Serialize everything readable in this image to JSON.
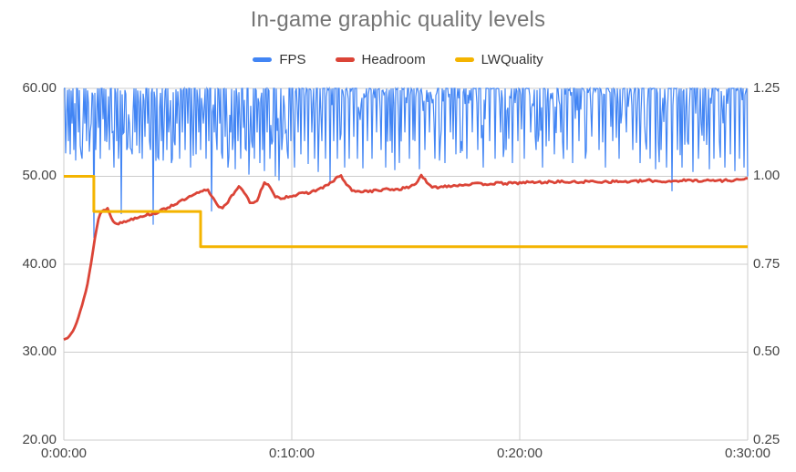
{
  "title": "In-game graphic quality levels",
  "legend": [
    {
      "label": "FPS",
      "color": "#4285F4"
    },
    {
      "label": "Headroom",
      "color": "#DB4437"
    },
    {
      "label": "LWQuality",
      "color": "#F4B400"
    }
  ],
  "colors": {
    "title": "#757575",
    "axis_text": "#444444",
    "gridline": "#cccccc",
    "background": "#ffffff"
  },
  "chart_data": {
    "type": "line",
    "title": "In-game graphic quality levels",
    "legend_position": "top",
    "grid": true,
    "x_axis": {
      "ticks": [
        "0:00:00",
        "0:10:00",
        "0:20:00",
        "0:30:00"
      ],
      "range_seconds": [
        0,
        1800
      ],
      "tick_seconds": [
        0,
        600,
        1200,
        1800
      ]
    },
    "y_axis_left": {
      "ticks": [
        "60.00",
        "50.00",
        "40.00",
        "30.00",
        "20.00"
      ],
      "range": [
        20,
        60
      ]
    },
    "y_axis_right": {
      "ticks": [
        "1.25",
        "1.00",
        "0.75",
        "0.50",
        "0.25"
      ],
      "range": [
        0.25,
        1.25
      ]
    },
    "series": [
      {
        "name": "FPS",
        "axis": "left",
        "color": "#4285F4",
        "line_width": 1.2,
        "baseline": 60,
        "texture": {
          "seed": 7,
          "max_jitter_dip": 8.5,
          "exponent": 6
        },
        "spikes": [
          [
            6,
            57
          ],
          [
            11,
            54
          ],
          [
            16,
            52.5
          ],
          [
            21,
            56
          ],
          [
            27,
            53
          ],
          [
            32,
            51.8
          ],
          [
            38,
            55
          ],
          [
            43,
            53.5
          ],
          [
            49,
            52
          ],
          [
            55,
            56
          ],
          [
            61,
            54
          ],
          [
            66,
            52.8
          ],
          [
            72,
            56
          ],
          [
            79,
            43
          ],
          [
            85,
            53
          ],
          [
            91,
            55.5
          ],
          [
            97,
            52
          ],
          [
            103,
            56.5
          ],
          [
            109,
            54
          ],
          [
            115,
            56
          ],
          [
            121,
            53
          ],
          [
            127,
            55
          ],
          [
            133,
            51
          ],
          [
            139,
            54
          ],
          [
            145,
            52
          ],
          [
            151,
            45.7
          ],
          [
            158,
            55
          ],
          [
            165,
            53
          ],
          [
            172,
            56
          ],
          [
            179,
            52.5
          ],
          [
            186,
            55
          ],
          [
            193,
            53.5
          ],
          [
            200,
            56
          ],
          [
            207,
            52
          ],
          [
            214,
            54.5
          ],
          [
            221,
            56
          ],
          [
            228,
            53
          ],
          [
            235,
            44.5
          ],
          [
            242,
            55
          ],
          [
            249,
            52
          ],
          [
            256,
            54
          ],
          [
            263,
            56
          ],
          [
            270,
            53
          ],
          [
            277,
            55
          ],
          [
            284,
            51.5
          ],
          [
            291,
            54
          ],
          [
            298,
            56
          ],
          [
            305,
            52
          ],
          [
            312,
            55
          ],
          [
            319,
            53
          ],
          [
            326,
            56
          ],
          [
            333,
            51
          ],
          [
            340,
            54
          ],
          [
            347,
            52.5
          ],
          [
            354,
            55
          ],
          [
            361,
            53
          ],
          [
            368,
            56
          ],
          [
            375,
            52
          ],
          [
            382,
            54
          ],
          [
            389,
            46
          ],
          [
            396,
            55
          ],
          [
            403,
            53
          ],
          [
            410,
            56
          ],
          [
            417,
            52
          ],
          [
            424,
            54.5
          ],
          [
            431,
            51
          ],
          [
            438,
            55
          ],
          [
            445,
            53
          ],
          [
            452,
            50.8
          ],
          [
            459,
            54
          ],
          [
            466,
            52
          ],
          [
            473,
            55.5
          ],
          [
            480,
            53
          ],
          [
            487,
            50.2
          ],
          [
            494,
            54
          ],
          [
            501,
            52
          ],
          [
            508,
            55
          ],
          [
            515,
            51.5
          ],
          [
            522,
            53
          ],
          [
            529,
            50.6
          ],
          [
            536,
            55
          ],
          [
            543,
            52
          ],
          [
            550,
            54
          ],
          [
            557,
            50
          ],
          [
            566,
            49.5
          ],
          [
            574,
            53
          ],
          [
            582,
            55
          ],
          [
            590,
            52
          ],
          [
            598,
            54
          ],
          [
            607,
            51
          ],
          [
            616,
            55
          ],
          [
            625,
            52.5
          ],
          [
            634,
            54
          ],
          [
            643,
            51.4
          ],
          [
            652,
            55
          ],
          [
            661,
            52
          ],
          [
            670,
            50.5
          ],
          [
            679,
            54
          ],
          [
            688,
            52
          ],
          [
            700,
            49.3
          ],
          [
            710,
            54
          ],
          [
            720,
            52
          ],
          [
            730,
            55
          ],
          [
            740,
            51
          ],
          [
            751,
            52
          ],
          [
            762,
            54.5
          ],
          [
            773,
            52
          ],
          [
            787,
            50.9
          ],
          [
            800,
            54
          ],
          [
            812,
            52
          ],
          [
            824,
            55
          ],
          [
            836,
            53
          ],
          [
            848,
            51
          ],
          [
            860,
            54
          ],
          [
            871,
            50.7
          ],
          [
            884,
            53
          ],
          [
            897,
            55
          ],
          [
            910,
            52
          ],
          [
            923,
            54
          ],
          [
            936,
            50.8
          ],
          [
            950,
            53
          ],
          [
            963,
            55
          ],
          [
            976,
            52
          ],
          [
            990,
            54
          ],
          [
            1004,
            51.5
          ],
          [
            1018,
            55
          ],
          [
            1032,
            52.5
          ],
          [
            1046,
            54
          ],
          [
            1060,
            52
          ],
          [
            1075,
            55
          ],
          [
            1090,
            53
          ],
          [
            1105,
            51
          ],
          [
            1120,
            54
          ],
          [
            1135,
            52
          ],
          [
            1150,
            55
          ],
          [
            1165,
            53
          ],
          [
            1180,
            51.5
          ],
          [
            1196,
            54
          ],
          [
            1212,
            52
          ],
          [
            1228,
            55
          ],
          [
            1244,
            53
          ],
          [
            1260,
            51
          ],
          [
            1276,
            54
          ],
          [
            1292,
            52.5
          ],
          [
            1308,
            55
          ],
          [
            1324,
            53
          ],
          [
            1340,
            51.5
          ],
          [
            1356,
            54
          ],
          [
            1372,
            52
          ],
          [
            1390,
            55
          ],
          [
            1408,
            53
          ],
          [
            1426,
            51
          ],
          [
            1444,
            54
          ],
          [
            1462,
            52
          ],
          [
            1480,
            55
          ],
          [
            1498,
            53
          ],
          [
            1516,
            51.5
          ],
          [
            1530,
            54
          ],
          [
            1544,
            52
          ],
          [
            1558,
            50.8
          ],
          [
            1572,
            53
          ],
          [
            1586,
            51
          ],
          [
            1600,
            48.3
          ],
          [
            1614,
            53
          ],
          [
            1628,
            51
          ],
          [
            1642,
            54
          ],
          [
            1656,
            50.5
          ],
          [
            1670,
            52
          ],
          [
            1684,
            54
          ],
          [
            1698,
            50.8
          ],
          [
            1712,
            52
          ],
          [
            1726,
            54
          ],
          [
            1740,
            51
          ],
          [
            1754,
            52.5
          ],
          [
            1766,
            50.6
          ],
          [
            1778,
            52
          ],
          [
            1790,
            51
          ],
          [
            1800,
            50
          ]
        ]
      },
      {
        "name": "Headroom",
        "axis": "right",
        "color": "#DB4437",
        "line_width": 2.8,
        "texture": {
          "seed": 13,
          "jitter": 0.007
        },
        "points": [
          [
            0,
            0.535
          ],
          [
            12,
            0.545
          ],
          [
            25,
            0.565
          ],
          [
            35,
            0.588
          ],
          [
            45,
            0.62
          ],
          [
            55,
            0.66
          ],
          [
            65,
            0.71
          ],
          [
            75,
            0.775
          ],
          [
            82,
            0.825
          ],
          [
            88,
            0.865
          ],
          [
            95,
            0.893
          ],
          [
            105,
            0.905
          ],
          [
            115,
            0.908
          ],
          [
            130,
            0.873
          ],
          [
            145,
            0.865
          ],
          [
            165,
            0.873
          ],
          [
            190,
            0.883
          ],
          [
            215,
            0.89
          ],
          [
            240,
            0.895
          ],
          [
            252,
            0.9
          ],
          [
            270,
            0.91
          ],
          [
            300,
            0.925
          ],
          [
            330,
            0.94
          ],
          [
            355,
            0.953
          ],
          [
            378,
            0.963
          ],
          [
            395,
            0.935
          ],
          [
            412,
            0.91
          ],
          [
            425,
            0.915
          ],
          [
            440,
            0.94
          ],
          [
            455,
            0.965
          ],
          [
            462,
            0.973
          ],
          [
            475,
            0.955
          ],
          [
            490,
            0.925
          ],
          [
            498,
            0.92
          ],
          [
            510,
            0.935
          ],
          [
            520,
            0.965
          ],
          [
            528,
            0.98
          ],
          [
            540,
            0.973
          ],
          [
            552,
            0.948
          ],
          [
            564,
            0.938
          ],
          [
            580,
            0.94
          ],
          [
            600,
            0.945
          ],
          [
            625,
            0.95
          ],
          [
            650,
            0.955
          ],
          [
            675,
            0.965
          ],
          [
            700,
            0.978
          ],
          [
            715,
            0.993
          ],
          [
            728,
            1.003
          ],
          [
            740,
            0.983
          ],
          [
            755,
            0.963
          ],
          [
            768,
            0.955
          ],
          [
            785,
            0.958
          ],
          [
            805,
            0.958
          ],
          [
            830,
            0.96
          ],
          [
            855,
            0.963
          ],
          [
            880,
            0.963
          ],
          [
            905,
            0.968
          ],
          [
            925,
            0.978
          ],
          [
            935,
            0.993
          ],
          [
            941,
            1.005
          ],
          [
            950,
            0.99
          ],
          [
            960,
            0.975
          ],
          [
            972,
            0.968
          ],
          [
            990,
            0.97
          ],
          [
            1010,
            0.973
          ],
          [
            1040,
            0.975
          ],
          [
            1070,
            0.978
          ],
          [
            1100,
            0.978
          ],
          [
            1140,
            0.98
          ],
          [
            1180,
            0.98
          ],
          [
            1220,
            0.983
          ],
          [
            1260,
            0.983
          ],
          [
            1300,
            0.985
          ],
          [
            1340,
            0.983
          ],
          [
            1380,
            0.985
          ],
          [
            1420,
            0.985
          ],
          [
            1460,
            0.985
          ],
          [
            1500,
            0.985
          ],
          [
            1540,
            0.988
          ],
          [
            1580,
            0.985
          ],
          [
            1620,
            0.988
          ],
          [
            1660,
            0.988
          ],
          [
            1700,
            0.988
          ],
          [
            1740,
            0.988
          ],
          [
            1770,
            0.99
          ],
          [
            1800,
            0.993
          ]
        ]
      },
      {
        "name": "LWQuality",
        "axis": "right",
        "color": "#F4B400",
        "line_width": 3,
        "steps": [
          [
            0,
            1.0
          ],
          [
            79,
            0.9
          ],
          [
            360,
            0.8
          ]
        ],
        "end_seconds": 1800
      }
    ]
  }
}
